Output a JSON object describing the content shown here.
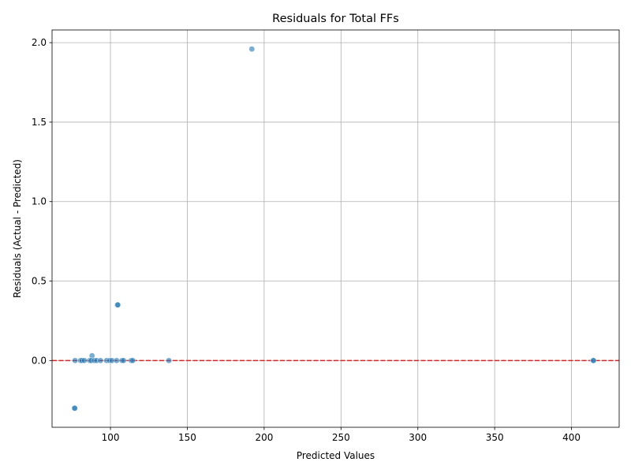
{
  "chart_data": {
    "type": "scatter",
    "title": "Residuals for Total FFs",
    "xlabel": "Predicted Values",
    "ylabel": "Residuals (Actual - Predicted)",
    "xlim": [
      62,
      431
    ],
    "ylim": [
      -0.42,
      2.08
    ],
    "xticks": [
      100,
      150,
      200,
      250,
      300,
      350,
      400
    ],
    "yticks": [
      0.0,
      0.5,
      1.0,
      1.5,
      2.0
    ],
    "xtick_labels": [
      "100",
      "150",
      "200",
      "250",
      "300",
      "350",
      "400"
    ],
    "ytick_labels": [
      "0.0",
      "0.5",
      "1.0",
      "1.5",
      "2.0"
    ],
    "grid": true,
    "reference_line": {
      "y": 0,
      "color": "#d62728",
      "style": "dashed"
    },
    "point_color": "#1f77b4",
    "point_alpha": 0.6,
    "points": [
      {
        "x": 192,
        "y": 1.96
      },
      {
        "x": 104.5,
        "y": 0.35
      },
      {
        "x": 104.8,
        "y": 0.35
      },
      {
        "x": 88,
        "y": 0.03
      },
      {
        "x": 76.5,
        "y": -0.3
      },
      {
        "x": 76.8,
        "y": -0.3
      },
      {
        "x": 77,
        "y": 0.0
      },
      {
        "x": 80.5,
        "y": 0.0
      },
      {
        "x": 81.5,
        "y": 0.0
      },
      {
        "x": 83,
        "y": 0.0
      },
      {
        "x": 86.5,
        "y": 0.0
      },
      {
        "x": 87.5,
        "y": 0.0
      },
      {
        "x": 89.5,
        "y": 0.0
      },
      {
        "x": 91,
        "y": 0.0
      },
      {
        "x": 93.5,
        "y": 0.0
      },
      {
        "x": 97.5,
        "y": 0.0
      },
      {
        "x": 99.5,
        "y": 0.0
      },
      {
        "x": 101,
        "y": 0.0
      },
      {
        "x": 104,
        "y": 0.0
      },
      {
        "x": 107.5,
        "y": 0.0
      },
      {
        "x": 108.5,
        "y": 0.0
      },
      {
        "x": 113.5,
        "y": 0.0
      },
      {
        "x": 114.5,
        "y": 0.0
      },
      {
        "x": 138,
        "y": 0.0
      },
      {
        "x": 414,
        "y": 0.0
      },
      {
        "x": 414.3,
        "y": 0.0
      }
    ]
  }
}
